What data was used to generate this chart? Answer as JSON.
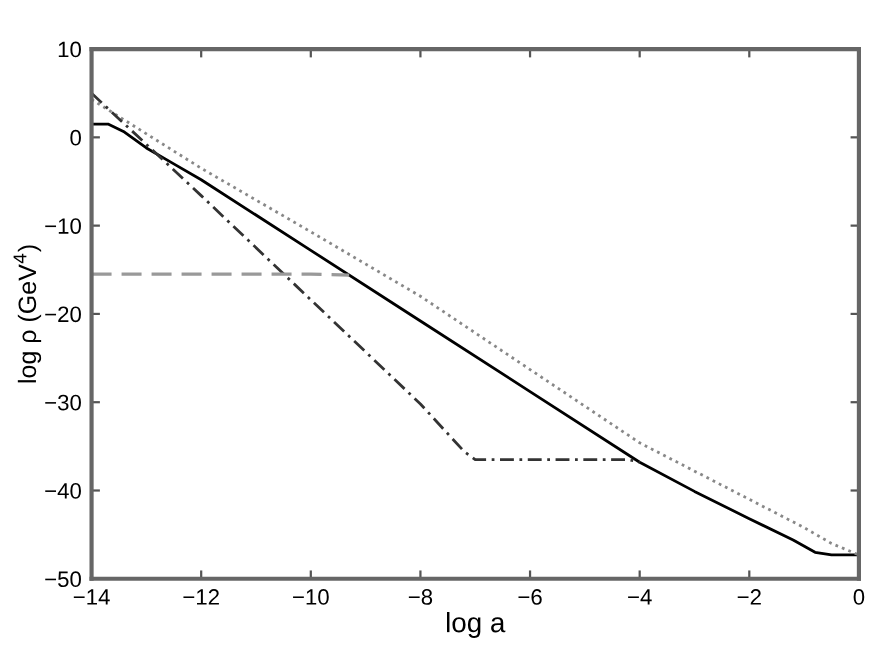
{
  "chart_data": {
    "type": "line",
    "xlabel": "log a",
    "ylabel": "log ρ (GeV$^{4}$)",
    "xlim": [
      -14,
      0
    ],
    "ylim": [
      -50,
      10
    ],
    "xticks": [
      -14,
      -12,
      -10,
      -8,
      -6,
      -4,
      -2,
      0
    ],
    "yticks": [
      -50,
      -40,
      -30,
      -20,
      -10,
      0,
      10
    ],
    "grid": false,
    "legend": false,
    "series": [
      {
        "color": "#000000",
        "line_style": "solid",
        "x": [
          -14,
          -13.7,
          -13.4,
          -13.0,
          -12.5,
          -12,
          -10,
          -8,
          -6,
          -4,
          -3,
          -2,
          -1.2,
          -0.8,
          -0.5,
          0
        ],
        "values": [
          1.5,
          1.5,
          0.6,
          -1.2,
          -3.0,
          -4.8,
          -12.8,
          -20.8,
          -28.8,
          -36.8,
          -40.1,
          -43.2,
          -45.6,
          -47.0,
          -47.3,
          -47.3
        ]
      },
      {
        "color": "#888888",
        "line_style": "dotted",
        "x": [
          -14,
          -12,
          -10,
          -8,
          -6,
          -4,
          -2,
          -1,
          -0.5,
          0
        ],
        "values": [
          4.3,
          -3.5,
          -10.7,
          -18.0,
          -26.3,
          -34.6,
          -41.0,
          -44.2,
          -46.0,
          -47.3
        ]
      },
      {
        "color": "#333333",
        "line_style": "dashdot",
        "x": [
          -14,
          -13,
          -12,
          -10,
          -8,
          -7.2,
          -7,
          -5,
          -4.2,
          -4
        ],
        "values": [
          5.0,
          -0.8,
          -6.6,
          -18.4,
          -30.2,
          -35.6,
          -36.5,
          -36.5,
          -36.5,
          -36.8
        ]
      },
      {
        "color": "#999999",
        "line_style": "dashed",
        "x": [
          -14,
          -12,
          -10,
          -9.3
        ],
        "values": [
          -15.5,
          -15.5,
          -15.5,
          -15.6
        ]
      }
    ]
  }
}
